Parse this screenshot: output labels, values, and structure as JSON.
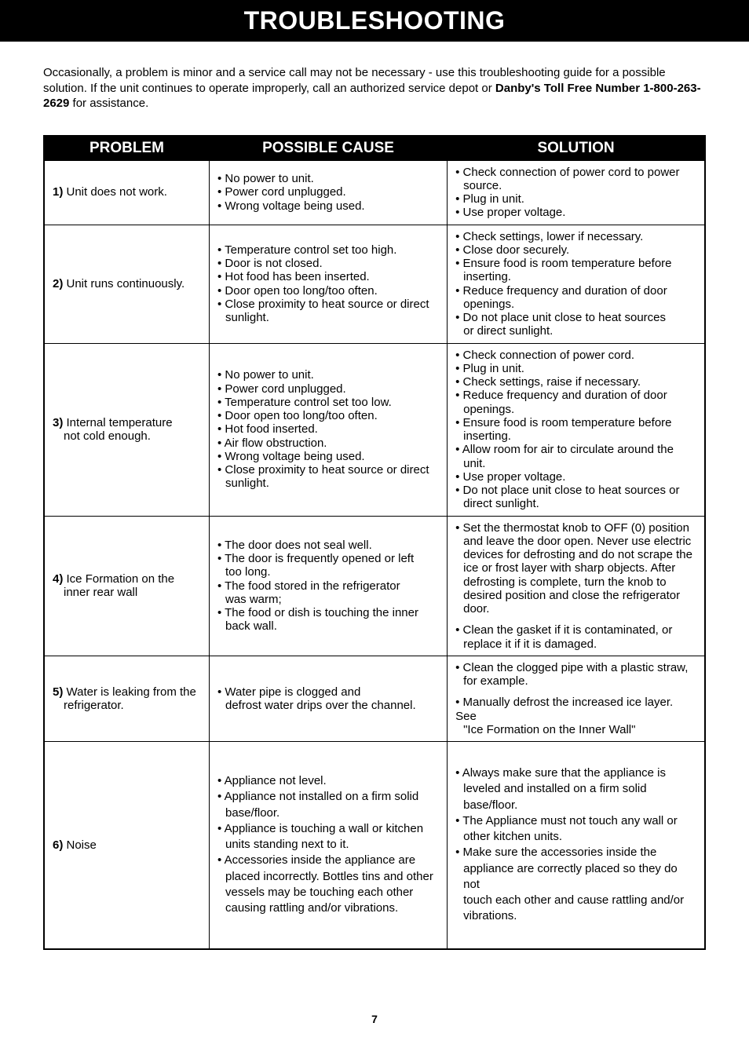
{
  "title": "TROUBLESHOOTING",
  "intro": {
    "text1": "Occasionally, a problem is minor and a service call may not be necessary - use this troubleshooting guide for a possible solution. If the unit continues to operate improperly, call an authorized service depot or ",
    "bold1": "Danby's Toll Free Number 1-800-263-2629",
    "text2": " for assistance."
  },
  "headers": {
    "problem": "PROBLEM",
    "cause": "POSSIBLE CAUSE",
    "solution": "SOLUTION"
  },
  "rows": [
    {
      "num": "1)",
      "problem": " Unit does not work.",
      "cause": "• No power to unit.\n• Power cord unplugged.\n• Wrong voltage being used.",
      "solution": "• Check connection of power cord to power\n  source.\n• Plug in unit.\n• Use proper voltage."
    },
    {
      "num": "2)",
      "problem": " Unit runs continuously.",
      "cause": "• Temperature control set too high.\n• Door is not closed.\n• Hot food has been inserted.\n• Door open too long/too often.\n• Close proximity to heat source or direct\n  sunlight.",
      "solution": "• Check settings, lower if necessary.\n• Close door securely.\n• Ensure food is room temperature before\n  inserting.\n• Reduce frequency and duration of door\n  openings.\n• Do not place unit close to heat sources\n  or direct sunlight."
    },
    {
      "num": "3)",
      "problem": " Internal temperature",
      "problem2": "not cold enough.",
      "cause": "• No power to unit.\n• Power cord unplugged.\n• Temperature control set too low.\n• Door open too long/too often.\n• Hot food inserted.\n• Air flow obstruction.\n• Wrong voltage being used.\n• Close proximity to heat source or direct\n  sunlight.",
      "solution": "• Check connection of power cord.\n• Plug in unit.\n• Check settings, raise if necessary.\n• Reduce frequency and duration of door\n  openings.\n• Ensure food is room temperature before\n  inserting.\n• Allow room for air to circulate around the\n  unit.\n• Use proper voltage.\n• Do not place unit close to heat sources or\n  direct sunlight."
    },
    {
      "num": "4)",
      "problem": " Ice Formation on the",
      "problem2": "inner rear wall",
      "cause": "• The door does not seal well.\n• The door is frequently opened or left\n  too long.\n• The food stored in the refrigerator\n  was warm;\n• The food or dish is touching the inner\n  back wall.",
      "solution": "• Set the thermostat knob to OFF (0) position\n  and leave the door open. Never use electric\n  devices for defrosting and do not scrape the\n  ice or frost layer with sharp objects. After\n  defrosting is complete, turn the knob to\n  desired position and close the refrigerator\n  door.\n\n• Clean the gasket if it is contaminated, or\n  replace it if it is damaged."
    },
    {
      "num": "5)",
      "problem": " Water is leaking from the",
      "problem2": "refrigerator.",
      "cause": "• Water pipe is clogged and\n  defrost water drips over the channel.",
      "solution": "• Clean the clogged pipe with a plastic straw,\n  for example.\n\n• Manually defrost the increased ice layer. See\n  \"Ice Formation on the Inner Wall\""
    },
    {
      "num": "6)",
      "problem": " Noise",
      "cause": "• Appliance not level.\n• Appliance not installed on a firm solid\n  base/floor.\n• Appliance is touching a wall or kitchen\n  units standing next to it.\n• Accessories inside the appliance are\n  placed incorrectly. Bottles tins and other\n  vessels may be touching each other\n  causing rattling and/or vibrations.",
      "solution": "• Always make sure that the appliance is\n  leveled and installed on a firm solid\n  base/floor.\n• The Appliance must not touch any wall or\n  other kitchen units.\n• Make sure the accessories inside the\n  appliance are correctly placed so they do not\n  touch each other and cause rattling and/or\n  vibrations.",
      "extraHeight": true
    }
  ],
  "pageNumber": "7"
}
